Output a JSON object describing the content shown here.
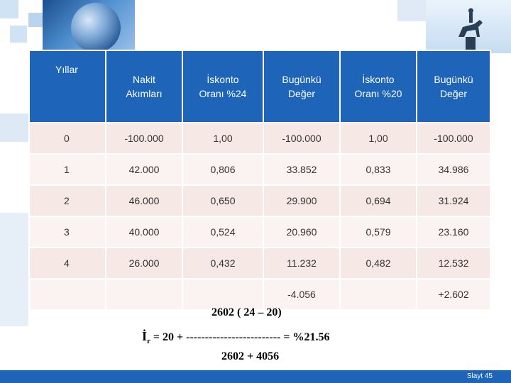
{
  "table": {
    "headers": [
      [
        "Yıllar"
      ],
      [
        "Nakit",
        "Akımları"
      ],
      [
        "İskonto",
        "Oranı %24"
      ],
      [
        "Bugünkü",
        "Değer"
      ],
      [
        "İskonto",
        "Oranı %20"
      ],
      [
        "Bugünkü",
        "Değer"
      ]
    ],
    "rows": [
      [
        "0",
        "-100.000",
        "1,00",
        "-100.000",
        "1,00",
        "-100.000"
      ],
      [
        "1",
        "42.000",
        "0,806",
        "33.852",
        "0,833",
        "34.986"
      ],
      [
        "2",
        "46.000",
        "0,650",
        "29.900",
        "0,694",
        "31.924"
      ],
      [
        "3",
        "40.000",
        "0,524",
        "20.960",
        "0,579",
        "23.160"
      ],
      [
        "4",
        "26.000",
        "0,432",
        "11.232",
        "0,482",
        "12.532"
      ],
      [
        "",
        "",
        "",
        "-4.056",
        "",
        "+2.602"
      ]
    ]
  },
  "formula": {
    "numerator": "2602 ( 24 – 20)",
    "lhs_symbol": "İ",
    "lhs_subscript": "r",
    "rhs": "= 20 + ------------------------- = %21.56",
    "denominator": "2602 + 4056"
  },
  "footer": {
    "slide_label": "Slayt 45"
  }
}
